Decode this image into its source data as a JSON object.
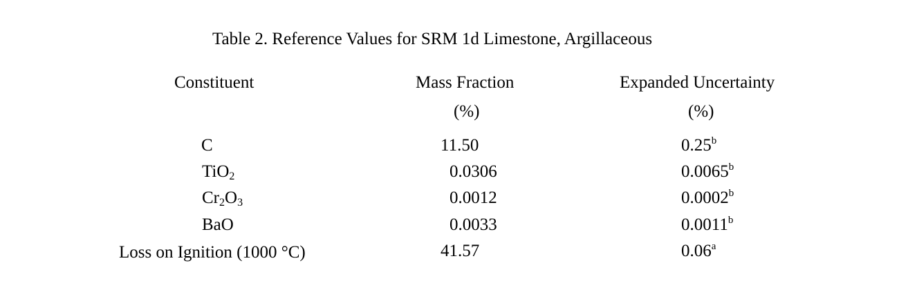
{
  "title": "Table 2.  Reference Values for SRM 1d Limestone, Argillaceous",
  "headers": {
    "constituent": "Constituent",
    "mass_fraction": "Mass Fraction",
    "mass_fraction_unit": "(%)",
    "expanded_uncertainty": "Expanded Uncertainty",
    "expanded_uncertainty_unit": "(%)"
  },
  "rows": [
    {
      "constituent": "C",
      "mass_fraction": "11.50",
      "uncertainty": "0.25",
      "note": "b"
    },
    {
      "constituent_parts": [
        "Ti",
        "O",
        "2"
      ],
      "mass_fraction": "0.0306",
      "uncertainty": "0.0065",
      "note": "b"
    },
    {
      "constituent_parts": [
        "Cr",
        "2",
        "O",
        "3"
      ],
      "mass_fraction": "0.0012",
      "uncertainty": "0.0002",
      "note": "b"
    },
    {
      "constituent": "BaO",
      "mass_fraction": "0.0033",
      "uncertainty": "0.0011",
      "note": "b"
    },
    {
      "constituent": "Loss on Ignition (1000 °C)",
      "mass_fraction": "41.57",
      "uncertainty": "0.06",
      "note": "a"
    }
  ]
}
